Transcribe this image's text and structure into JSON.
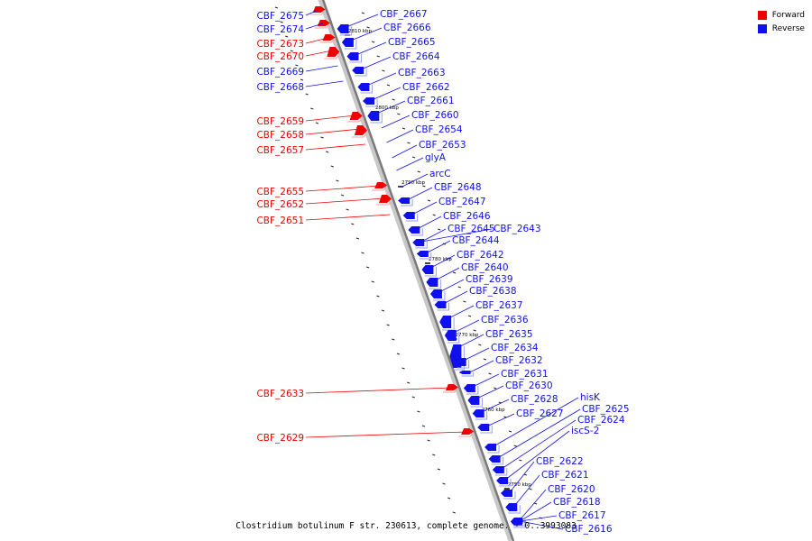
{
  "colors": {
    "forward": "#ee0000",
    "reverse": "#1010ee",
    "backbone": "#7a7a7a"
  },
  "legend": {
    "forward": "Forward",
    "reverse": "Reverse"
  },
  "caption": "Clostridium botulinum F str. 230613, complete genome. - 0..3993083",
  "ticks": [
    "2810 kbp",
    "2800 kbp",
    "2790 kbp",
    "2780 kbp",
    "2770 kbp",
    "2760 kbp",
    "2750 kbp"
  ],
  "forward_genes": [
    "CBF_2675",
    "CBF_2674",
    "CBF_2673",
    "CBF_2670",
    "CBF_2669",
    "CBF_2668",
    "CBF_2659",
    "CBF_2658",
    "CBF_2657",
    "CBF_2655",
    "CBF_2652",
    "CBF_2651",
    "CBF_2633",
    "CBF_2629"
  ],
  "reverse_genes": [
    "CBF_2667",
    "CBF_2666",
    "CBF_2665",
    "CBF_2664",
    "CBF_2663",
    "CBF_2662",
    "CBF_2661",
    "CBF_2660",
    "CBF_2654",
    "CBF_2653",
    "glyA",
    "arcC",
    "CBF_2648",
    "CBF_2647",
    "CBF_2646",
    "CBF_2645",
    "CBF_2643",
    "CBF_2644",
    "CBF_2642",
    "CBF_2640",
    "CBF_2639",
    "CBF_2638",
    "CBF_2637",
    "CBF_2636",
    "CBF_2635",
    "CBF_2634",
    "CBF_2632",
    "CBF_2631",
    "CBF_2630",
    "CBF_2628",
    "CBF_2627",
    "hisK",
    "CBF_2625",
    "CBF_2624",
    "iscS-2",
    "CBF_2622",
    "CBF_2621",
    "CBF_2620",
    "CBF_2618",
    "CBF_2617",
    "CBF_2616"
  ]
}
